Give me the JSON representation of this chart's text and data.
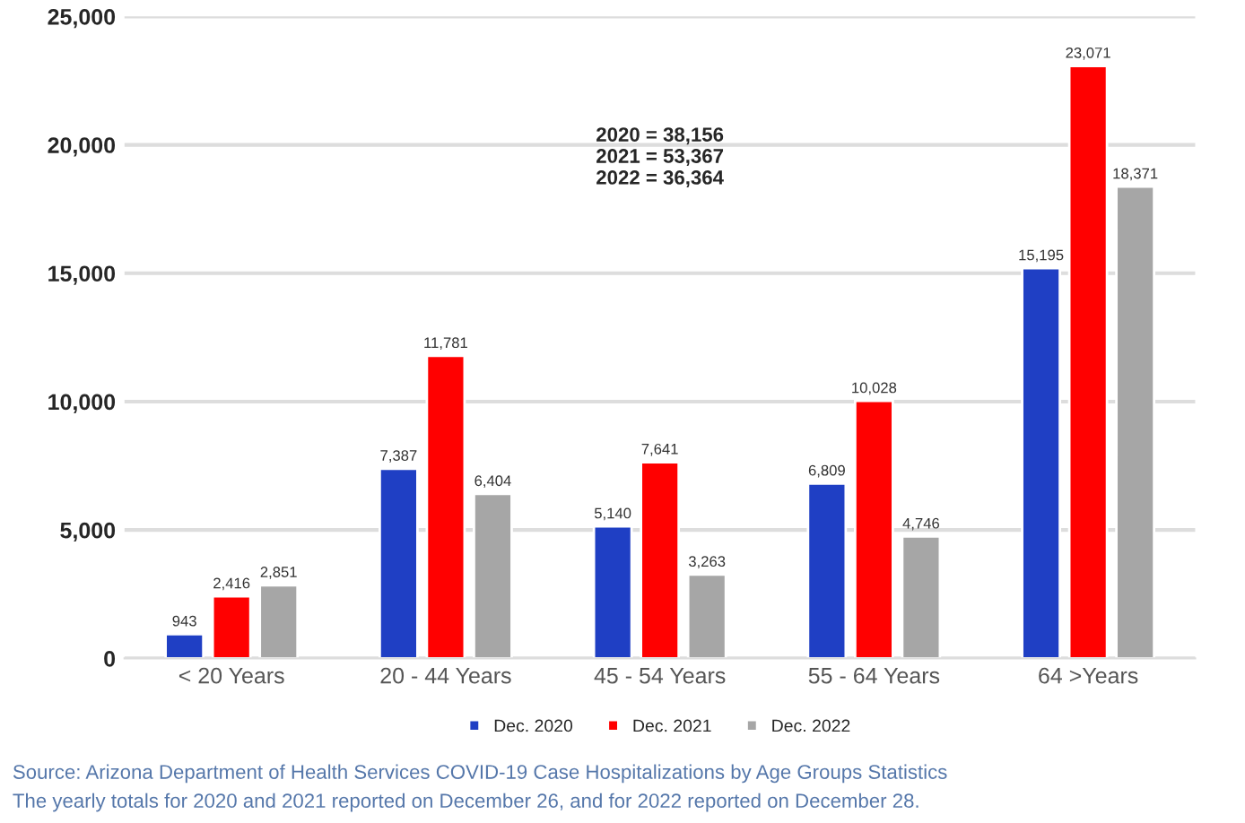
{
  "chart_data": {
    "type": "bar",
    "categories": [
      "< 20 Years",
      "20 - 44 Years",
      "45 - 54 Years",
      "55 - 64 Years",
      "64 >Years"
    ],
    "series": [
      {
        "name": "Dec. 2020",
        "color": "#1f3fc4",
        "values": [
          943,
          7387,
          5140,
          6809,
          15195
        ],
        "value_labels": [
          "943",
          "7,387",
          "5,140",
          "6,809",
          "15,195"
        ]
      },
      {
        "name": "Dec. 2021",
        "color": "#ff0000",
        "values": [
          2416,
          11781,
          7641,
          10028,
          23071
        ],
        "value_labels": [
          "2,416",
          "11,781",
          "7,641",
          "10,028",
          "23,071"
        ]
      },
      {
        "name": "Dec. 2022",
        "color": "#a6a6a6",
        "values": [
          2851,
          6404,
          3263,
          4746,
          18371
        ],
        "value_labels": [
          "2,851",
          "6,404",
          "3,263",
          "4,746",
          "18,371"
        ]
      }
    ],
    "ylim": [
      0,
      25000
    ],
    "yticks": [
      0,
      {
        "value": 5000,
        "label": "5,000"
      },
      {
        "value": 10000,
        "label": "10,000"
      },
      {
        "value": 15000,
        "label": "15,000"
      },
      {
        "value": 20000,
        "label": "20,000"
      },
      {
        "value": 25000,
        "label": "25,000"
      }
    ],
    "grid": "y",
    "legend": "bottom",
    "annotations": [
      "2020 = 38,156\n2021 = 53,367\n2022 = 36,364",
      "Source: Arizona Department of Health Services COVID-19 Case Hospitalizations by Age Groups Statistics",
      "The yearly totals for 2020 and 2021 reported on December 26, and for 2022 reported on December 28."
    ]
  }
}
